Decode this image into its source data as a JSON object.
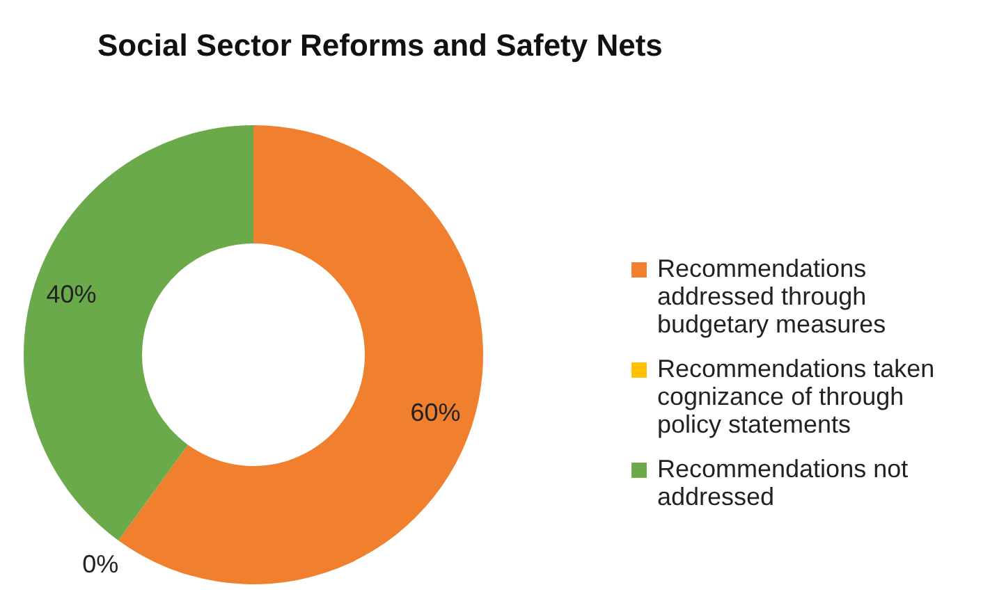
{
  "chart_data": {
    "type": "donut",
    "title": "Social Sector Reforms and Safety Nets",
    "categories": [
      "Recommendations addressed through budgetary measures",
      "Recommendations taken cognizance of through policy statements",
      "Recommendations not addressed"
    ],
    "values": [
      60,
      0,
      40
    ],
    "colors": [
      "#f07f2e",
      "#ffc000",
      "#6aaa4a"
    ],
    "value_labels": [
      "60%",
      "0%",
      "40%"
    ],
    "legend": "right"
  }
}
